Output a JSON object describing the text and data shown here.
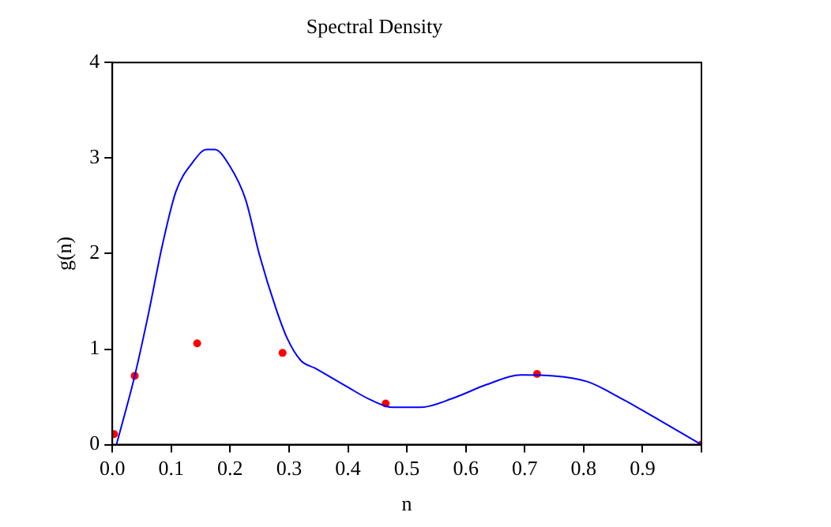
{
  "chart_data": {
    "type": "line",
    "title": "Spectral Density",
    "xlabel": "n",
    "ylabel": "g(n)",
    "xlim": [
      0,
      1
    ],
    "ylim": [
      0,
      4
    ],
    "xticks": [
      {
        "value": 0,
        "label": "0.0"
      },
      0.1,
      0.2,
      0.3,
      0.4,
      0.5,
      0.6,
      0.7,
      0.8,
      0.9,
      {
        "value": 1,
        "label": null
      }
    ],
    "yticks": [
      0,
      1,
      2,
      3,
      4
    ],
    "grid": false,
    "legend": false,
    "series": [
      {
        "color": "#0000ff",
        "marker": "none",
        "line_style": "solid",
        "x": [
          0.007,
          0.038,
          0.061,
          0.085,
          0.108,
          0.137,
          0.16,
          0.174,
          0.198,
          0.226,
          0.25,
          0.278,
          0.297,
          0.32,
          0.344,
          0.4,
          0.438,
          0.476,
          0.523,
          0.58,
          0.636,
          0.693,
          0.749,
          0.806,
          0.862,
          0.919,
          1.0
        ],
        "values": [
          0,
          0.72,
          1.36,
          2.09,
          2.65,
          2.96,
          3.09,
          3.09,
          2.93,
          2.57,
          1.98,
          1.42,
          1.11,
          0.88,
          0.8,
          0.6,
          0.47,
          0.39,
          0.39,
          0.49,
          0.63,
          0.73,
          0.72,
          0.66,
          0.49,
          0.29,
          0
        ]
      },
      {
        "type": "scatter",
        "color": "#ff0000",
        "marker": "circle",
        "x": [
          0.003,
          0.038,
          0.144,
          0.289,
          0.464,
          0.721,
          1.0
        ],
        "values": [
          0.11,
          0.72,
          1.06,
          0.96,
          0.43,
          0.74,
          0
        ]
      }
    ]
  }
}
